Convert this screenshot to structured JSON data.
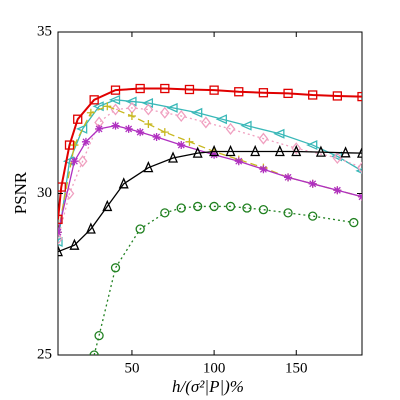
{
  "chart_data": {
    "type": "line",
    "xlabel": "h/(σ²|P|)%",
    "ylabel": "PSNR",
    "xlim": [
      5,
      190
    ],
    "ylim": [
      25,
      35
    ],
    "xticks": [
      50,
      100,
      150
    ],
    "yticks": [
      25,
      30,
      35
    ],
    "grid": false,
    "series": [
      {
        "color": "#39b8b8",
        "marker": "triangle-left",
        "dash": "solid",
        "x": [
          5,
          12,
          20,
          30,
          40,
          50,
          60,
          75,
          90,
          105,
          120,
          140,
          160,
          175,
          190
        ],
        "values": [
          28.5,
          31.0,
          32.0,
          32.7,
          32.9,
          32.85,
          32.8,
          32.65,
          32.5,
          32.3,
          32.1,
          31.85,
          31.5,
          31.15,
          30.7
        ]
      },
      {
        "color": "#f0a0c0",
        "marker": "diamond",
        "dash": "dotted",
        "x": [
          5,
          12,
          20,
          30,
          40,
          50,
          60,
          70,
          80,
          95,
          110,
          130,
          150,
          175,
          190
        ],
        "values": [
          28.6,
          30.0,
          31.0,
          32.2,
          32.6,
          32.65,
          32.6,
          32.5,
          32.4,
          32.2,
          32.0,
          31.7,
          31.4,
          31.1,
          30.8
        ]
      },
      {
        "color": "#c8b820",
        "marker": "plus",
        "dash": "dashed",
        "x": [
          5,
          15,
          25,
          35,
          50,
          60,
          70,
          85,
          100,
          115,
          130,
          145,
          160,
          175,
          190
        ],
        "values": [
          28.8,
          31.5,
          32.5,
          32.7,
          32.4,
          32.15,
          31.9,
          31.6,
          31.3,
          31.05,
          30.8,
          30.5,
          30.3,
          30.1,
          29.9
        ]
      },
      {
        "color": "#b030c0",
        "marker": "star",
        "dash": "solid",
        "x": [
          5,
          15,
          22,
          30,
          40,
          48,
          55,
          65,
          80,
          100,
          115,
          130,
          145,
          160,
          175,
          190
        ],
        "values": [
          28.8,
          31.0,
          31.6,
          32.0,
          32.1,
          32.0,
          31.9,
          31.75,
          31.5,
          31.2,
          31.0,
          30.75,
          30.5,
          30.3,
          30.1,
          29.9
        ]
      },
      {
        "color": "#e00000",
        "marker": "square",
        "dash": "solid",
        "x": [
          5,
          7,
          12,
          17,
          27,
          40,
          55,
          70,
          85,
          100,
          115,
          130,
          145,
          160,
          175,
          190
        ],
        "values": [
          29.2,
          30.2,
          31.5,
          32.3,
          32.9,
          33.2,
          33.25,
          33.25,
          33.22,
          33.2,
          33.15,
          33.12,
          33.1,
          33.05,
          33.02,
          33.0
        ]
      },
      {
        "color": "#000000",
        "marker": "triangle-up",
        "dash": "solid",
        "x": [
          5,
          15,
          25,
          35,
          45,
          60,
          75,
          90,
          100,
          110,
          125,
          140,
          150,
          165,
          180,
          190
        ],
        "values": [
          28.2,
          28.4,
          28.9,
          29.6,
          30.3,
          30.8,
          31.1,
          31.25,
          31.3,
          31.3,
          31.3,
          31.3,
          31.3,
          31.28,
          31.26,
          31.25
        ]
      },
      {
        "color": "#208020",
        "marker": "circle",
        "dash": "dotted",
        "x": [
          27,
          30,
          40,
          55,
          70,
          80,
          90,
          100,
          110,
          120,
          130,
          145,
          160,
          185
        ],
        "values": [
          25.0,
          25.6,
          27.7,
          28.9,
          29.4,
          29.55,
          29.6,
          29.6,
          29.6,
          29.55,
          29.5,
          29.4,
          29.3,
          29.1
        ]
      }
    ]
  }
}
